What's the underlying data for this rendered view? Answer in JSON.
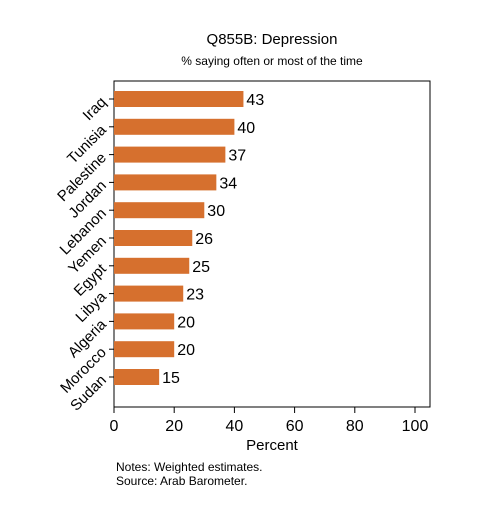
{
  "chart_data": {
    "type": "bar",
    "orientation": "horizontal",
    "title": "Q855B: Depression",
    "subtitle": "% saying often or most of the time",
    "xlabel": "Percent",
    "ylabel": "",
    "categories": [
      "Iraq",
      "Tunisia",
      "Palestine",
      "Jordan",
      "Lebanon",
      "Yemen",
      "Egypt",
      "Libya",
      "Algeria",
      "Morocco",
      "Sudan"
    ],
    "values": [
      43,
      40,
      37,
      34,
      30,
      26,
      25,
      23,
      20,
      20,
      15
    ],
    "xlim": [
      0,
      100
    ],
    "xticks": [
      0,
      20,
      40,
      60,
      80,
      100
    ],
    "bar_color": "#d6702e",
    "grid": false,
    "data_labels": true
  },
  "notes": {
    "line1": "Notes: Weighted estimates.",
    "line2": "Source: Arab Barometer."
  }
}
